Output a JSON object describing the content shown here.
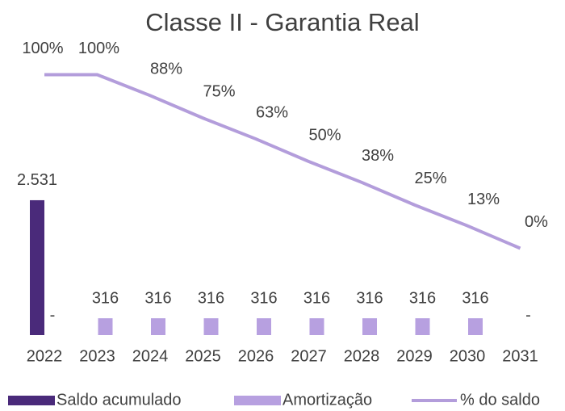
{
  "chart_data": {
    "type": "combo",
    "title": "Classe II - Garantia Real",
    "categories": [
      "2022",
      "2023",
      "2024",
      "2025",
      "2026",
      "2027",
      "2028",
      "2029",
      "2030",
      "2031"
    ],
    "series": [
      {
        "name": "Saldo acumulado",
        "type": "bar",
        "color": "#4a2a7a",
        "values": [
          2531,
          null,
          null,
          null,
          null,
          null,
          null,
          null,
          null,
          null
        ],
        "value_labels": [
          "2.531",
          null,
          null,
          null,
          null,
          null,
          null,
          null,
          null,
          null
        ]
      },
      {
        "name": "Amortização",
        "type": "bar",
        "color": "#b7a0e0",
        "values": [
          0,
          316,
          316,
          316,
          316,
          316,
          316,
          316,
          316,
          0
        ],
        "value_labels": [
          "-",
          "316",
          "316",
          "316",
          "316",
          "316",
          "316",
          "316",
          "316",
          "-"
        ]
      },
      {
        "name": "% do saldo",
        "type": "line",
        "axis": "y2",
        "color": "#b39ddb",
        "values": [
          100,
          100,
          88,
          75,
          63,
          50,
          38,
          25,
          13,
          0
        ],
        "value_labels": [
          "100%",
          "100%",
          "88%",
          "75%",
          "63%",
          "50%",
          "38%",
          "25%",
          "13%",
          "0%"
        ]
      }
    ],
    "ylim": [
      0,
      5000
    ],
    "y2lim": [
      -50,
      103.5
    ],
    "legend": "bottom"
  }
}
